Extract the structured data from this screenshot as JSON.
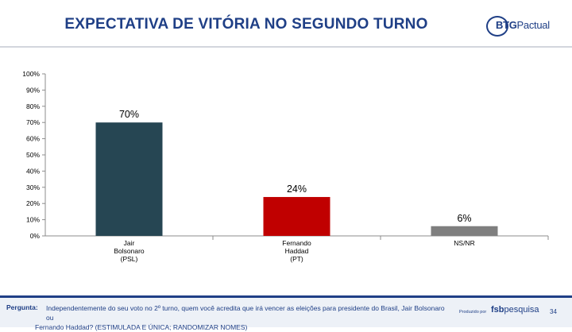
{
  "header": {
    "title": "EXPECTATIVA DE VITÓRIA NO SEGUNDO TURNO",
    "logo_bold": "BTG",
    "logo_rest": "Pactual"
  },
  "chart_data": {
    "type": "bar",
    "title": "EXPECTATIVA DE VITÓRIA NO SEGUNDO TURNO",
    "categories": [
      [
        "Jair",
        "Bolsonaro",
        "(PSL)"
      ],
      [
        "Fernando",
        "Haddad",
        "(PT)"
      ],
      [
        "NS/NR"
      ]
    ],
    "values": [
      70,
      24,
      6
    ],
    "data_labels": [
      "70%",
      "24%",
      "6%"
    ],
    "colors": [
      "#264653",
      "#c00000",
      "#7f7f7f"
    ],
    "ylim": [
      0,
      100
    ],
    "yticks": [
      "0%",
      "10%",
      "20%",
      "30%",
      "40%",
      "50%",
      "60%",
      "70%",
      "80%",
      "90%",
      "100%"
    ],
    "xlabel": "",
    "ylabel": "",
    "grid": false
  },
  "footer": {
    "question_label": "Pergunta:",
    "question_line1": "Independentemente  do seu voto no 2º turno, quem você acredita que irá vencer as eleições para presidente do Brasil, Jair Bolsonaro ou",
    "question_line2": "Fernando Haddad? (ESTIMULADA E ÚNICA; RANDOMIZAR NOMES)",
    "produced_by": "Produzido por",
    "brand_bold": "fsb",
    "brand_rest": "pesquisa",
    "page_number": "34"
  }
}
